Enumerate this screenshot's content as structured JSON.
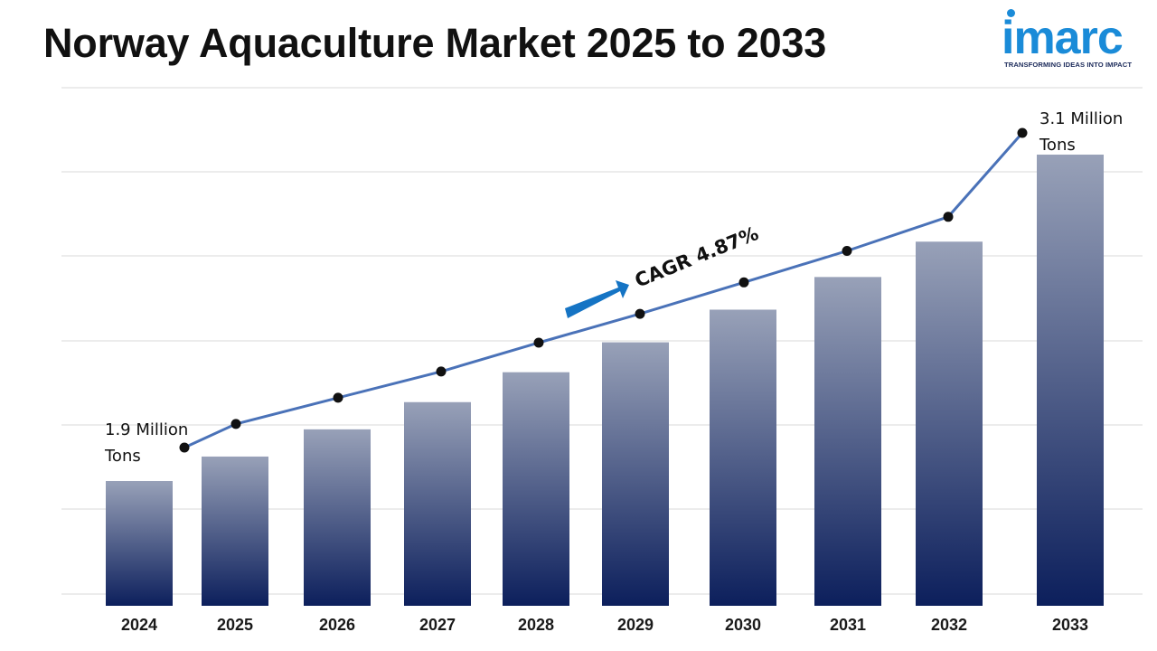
{
  "title": "Norway Aquaculture Market 2025 to 2033",
  "logo": {
    "word": "imarc",
    "tagline": "TRANSFORMING IDEAS INTO IMPACT",
    "color": "#1a8bd8"
  },
  "chart_data": {
    "type": "bar",
    "title": "Norway Aquaculture Market 2025 to 2033",
    "xlabel": "",
    "ylabel": "",
    "unit": "Million Tons",
    "categories": [
      "2024",
      "2025",
      "2026",
      "2027",
      "2028",
      "2029",
      "2030",
      "2031",
      "2032",
      "2033"
    ],
    "values": [
      1.9,
      1.99,
      2.09,
      2.19,
      2.3,
      2.41,
      2.53,
      2.65,
      2.78,
      3.1
    ],
    "ylim": [
      0,
      3.4
    ],
    "grid": true,
    "legend": "none",
    "trend_line": {
      "values": [
        1.9,
        1.99,
        2.09,
        2.19,
        2.3,
        2.41,
        2.53,
        2.65,
        2.78,
        3.1
      ],
      "color": "#4a72b8"
    },
    "bar_color_top": "#98a1b8",
    "bar_color_bottom": "#0c1f5c",
    "annotations": {
      "start_label": [
        "1.9 Million",
        "Tons"
      ],
      "end_label": [
        "3.1 Million",
        "Tons"
      ],
      "cagr": "CAGR 4.87%",
      "arrow_color": "#1574c4"
    }
  }
}
